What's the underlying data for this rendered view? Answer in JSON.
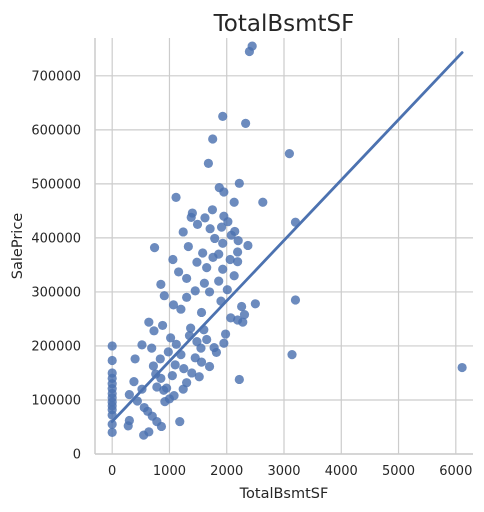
{
  "chart_data": {
    "type": "scatter",
    "title": "TotalBsmtSF",
    "xlabel": "TotalBsmtSF",
    "ylabel": "SalePrice",
    "xlim": [
      -300,
      6300
    ],
    "ylim": [
      0,
      770000
    ],
    "x_ticks": [
      0,
      1000,
      2000,
      3000,
      4000,
      5000,
      6000
    ],
    "y_ticks": [
      0,
      100000,
      200000,
      300000,
      400000,
      500000,
      600000,
      700000
    ],
    "grid": true,
    "legend": "none",
    "colors": {
      "points": "#4c72b0",
      "line": "#4c72b0",
      "grid": "#cccccc",
      "axis": "#cccccc"
    },
    "regression_line": {
      "x": [
        0,
        6110
      ],
      "y": [
        60000,
        743000
      ]
    },
    "points": [
      [
        2444,
        755000
      ],
      [
        2396,
        745000
      ],
      [
        1930,
        625000
      ],
      [
        2330,
        612000
      ],
      [
        1755,
        583000
      ],
      [
        3094,
        556000
      ],
      [
        1680,
        538000
      ],
      [
        2220,
        501000
      ],
      [
        1870,
        493000
      ],
      [
        1950,
        485000
      ],
      [
        1115,
        475000
      ],
      [
        2630,
        466000
      ],
      [
        2130,
        466000
      ],
      [
        1750,
        452000
      ],
      [
        1400,
        446000
      ],
      [
        1950,
        440000
      ],
      [
        3200,
        429000
      ],
      [
        1380,
        438000
      ],
      [
        1620,
        437000
      ],
      [
        2020,
        430000
      ],
      [
        1490,
        425000
      ],
      [
        1910,
        420000
      ],
      [
        1710,
        417000
      ],
      [
        2140,
        412000
      ],
      [
        1240,
        411000
      ],
      [
        2080,
        405000
      ],
      [
        1790,
        399000
      ],
      [
        2200,
        395000
      ],
      [
        1930,
        390000
      ],
      [
        2370,
        386000
      ],
      [
        1330,
        384000
      ],
      [
        740,
        382000
      ],
      [
        2190,
        374000
      ],
      [
        1860,
        370000
      ],
      [
        1580,
        372000
      ],
      [
        1760,
        364000
      ],
      [
        2060,
        360000
      ],
      [
        1060,
        360000
      ],
      [
        2190,
        356000
      ],
      [
        1480,
        355000
      ],
      [
        1650,
        345000
      ],
      [
        1930,
        342000
      ],
      [
        1160,
        337000
      ],
      [
        2130,
        330000
      ],
      [
        1300,
        325000
      ],
      [
        1860,
        320000
      ],
      [
        1610,
        316000
      ],
      [
        850,
        314000
      ],
      [
        2010,
        304000
      ],
      [
        1450,
        302000
      ],
      [
        1700,
        300000
      ],
      [
        910,
        293000
      ],
      [
        3200,
        285000
      ],
      [
        2500,
        278000
      ],
      [
        1300,
        290000
      ],
      [
        1900,
        283000
      ],
      [
        2260,
        273000
      ],
      [
        1070,
        276000
      ],
      [
        2310,
        258000
      ],
      [
        2070,
        252000
      ],
      [
        2190,
        248000
      ],
      [
        2280,
        244000
      ],
      [
        640,
        244000
      ],
      [
        1200,
        268000
      ],
      [
        1560,
        262000
      ],
      [
        730,
        228000
      ],
      [
        880,
        238000
      ],
      [
        1370,
        233000
      ],
      [
        1980,
        222000
      ],
      [
        520,
        202000
      ],
      [
        0,
        200000
      ],
      [
        3140,
        184000
      ],
      [
        6110,
        160000
      ],
      [
        2220,
        138000
      ],
      [
        0,
        173000
      ],
      [
        0,
        150000
      ],
      [
        0,
        140000
      ],
      [
        0,
        130000
      ],
      [
        0,
        121000
      ],
      [
        0,
        112000
      ],
      [
        0,
        104000
      ],
      [
        0,
        96000
      ],
      [
        0,
        89000
      ],
      [
        0,
        82000
      ],
      [
        0,
        72000
      ],
      [
        0,
        55000
      ],
      [
        0,
        40000
      ],
      [
        300,
        62000
      ],
      [
        280,
        52000
      ],
      [
        520,
        120000
      ],
      [
        400,
        176000
      ],
      [
        380,
        134000
      ],
      [
        300,
        110000
      ],
      [
        440,
        98000
      ],
      [
        560,
        86000
      ],
      [
        620,
        79000
      ],
      [
        700,
        70000
      ],
      [
        780,
        60000
      ],
      [
        860,
        51000
      ],
      [
        1180,
        60000
      ],
      [
        640,
        41000
      ],
      [
        550,
        35000
      ],
      [
        1000,
        102000
      ],
      [
        950,
        122000
      ],
      [
        1050,
        145000
      ],
      [
        1250,
        158000
      ],
      [
        1450,
        178000
      ],
      [
        1650,
        212000
      ],
      [
        1550,
        196000
      ],
      [
        1200,
        184000
      ],
      [
        1100,
        165000
      ],
      [
        850,
        140000
      ],
      [
        900,
        118000
      ],
      [
        1300,
        132000
      ],
      [
        1520,
        143000
      ],
      [
        1700,
        162000
      ],
      [
        1820,
        188000
      ],
      [
        1950,
        205000
      ],
      [
        720,
        163000
      ],
      [
        760,
        148000
      ],
      [
        840,
        176000
      ],
      [
        980,
        189000
      ],
      [
        1120,
        203000
      ],
      [
        1350,
        219000
      ],
      [
        1600,
        230000
      ],
      [
        1480,
        208000
      ],
      [
        1020,
        215000
      ],
      [
        690,
        196000
      ],
      [
        780,
        124000
      ],
      [
        920,
        97000
      ],
      [
        1080,
        108000
      ],
      [
        1240,
        120000
      ],
      [
        1390,
        150000
      ],
      [
        1560,
        170000
      ],
      [
        1780,
        197000
      ]
    ]
  }
}
